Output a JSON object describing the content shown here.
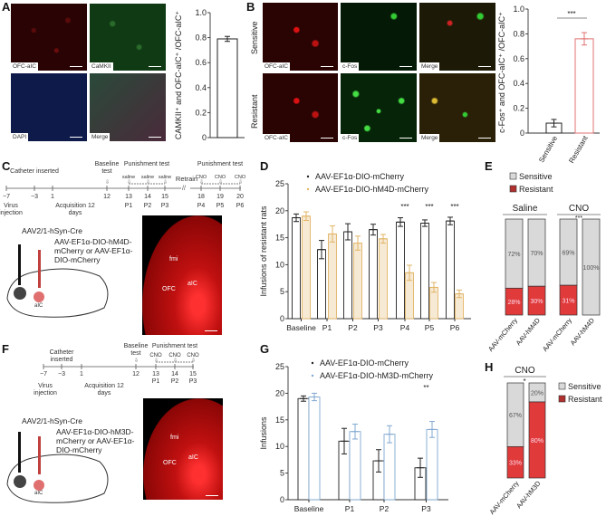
{
  "panels": {
    "A": "A",
    "B": "B",
    "C": "C",
    "D": "D",
    "E": "E",
    "F": "F",
    "G": "G",
    "H": "H"
  },
  "panelA": {
    "tiles": [
      "OFC-aIC",
      "CaMKII",
      "DAPI",
      "Merge"
    ]
  },
  "panelB": {
    "rows": [
      "Sensitive",
      "Resistant"
    ],
    "tiles": [
      "OFC-aIC",
      "c-Fos",
      "Merge"
    ]
  },
  "panelC": {
    "above": {
      "catheter": "Catheter inserted",
      "baseline": "Baseline test",
      "punishment1": "Punishment test",
      "punishment2": "Punishment test",
      "retrain": "Retrain"
    },
    "drugs": [
      "saline",
      "saline",
      "saline",
      "CNO",
      "CNO",
      "CNO"
    ],
    "ticks": [
      "−7",
      "−3",
      "1",
      "12",
      "13",
      "14",
      "15",
      "18",
      "19",
      "20"
    ],
    "sessions": [
      "P1",
      "P2",
      "P3",
      "P4",
      "P5",
      "P6"
    ],
    "virus": "Virus injection",
    "acquisition": "Acquisition 12 days",
    "cre": "AAV2/1-hSyn-Cre",
    "dio": "AAV-EF1α-DIO-hM4D-mCherry or AAV-EF1α-DIO-mCherry",
    "regions": [
      "fmi",
      "OFC",
      "aIC",
      "OFC",
      "aIC"
    ]
  },
  "panelF": {
    "above": {
      "catheter": "Catheter inserted",
      "baseline": "Baseline test",
      "punishment": "Punishment test"
    },
    "drugs": [
      "CNO",
      "CNO",
      "CNO"
    ],
    "ticks": [
      "−7",
      "−3",
      "1",
      "12",
      "13",
      "14",
      "15"
    ],
    "sessions": [
      "P1",
      "P2",
      "P3"
    ],
    "virus": "Virus injection",
    "acquisition": "Acquisition 12 days",
    "cre": "AAV2/1-hSyn-Cre",
    "dio": "AAV-EF1α-DIO-hM3D-mCherry or AAV-EF1α-DIO-mCherry",
    "regions": [
      "fmi",
      "OFC",
      "aIC",
      "OFC",
      "aIC"
    ]
  },
  "chart_data": [
    {
      "id": "A",
      "type": "bar",
      "categories": [
        ""
      ],
      "values": [
        0.79
      ],
      "errors": [
        0.02
      ],
      "ylabel": "CAMKII⁺ and OFC-aIC⁺ /OFC-aIC⁺",
      "ylim": [
        0,
        1
      ],
      "yticks": [
        "0",
        "0.2",
        "0.4",
        "0.6",
        "0.8",
        "1.0"
      ]
    },
    {
      "id": "B",
      "type": "bar",
      "categories": [
        "Sensitive",
        "Resistant"
      ],
      "values": [
        0.08,
        0.76
      ],
      "errors": [
        0.03,
        0.05
      ],
      "ylabel": "c-Fos⁺ and OFC-aIC⁺ /OFC-aIC⁺",
      "ylim": [
        0,
        1
      ],
      "yticks": [
        "0",
        "0.2",
        "0.4",
        "0.6",
        "0.8",
        "1.0"
      ],
      "annotation": "***",
      "colors": [
        "#222222",
        "#e07070"
      ]
    },
    {
      "id": "D",
      "type": "bar",
      "categories": [
        "Baseline",
        "P1",
        "P2",
        "P3",
        "P4",
        "P5",
        "P6"
      ],
      "ylabel": "Infusions of resistant rats",
      "ylim": [
        0,
        25
      ],
      "yticks": [
        "0",
        "5",
        "10",
        "15",
        "20",
        "25"
      ],
      "series": [
        {
          "name": "AAV-EF1α-DIO-mCherry",
          "values": [
            18.7,
            12.8,
            16.1,
            16.5,
            17.9,
            17.7,
            18.1
          ],
          "errors": [
            0.7,
            1.7,
            1.5,
            1.0,
            0.8,
            0.6,
            0.7
          ],
          "color": "#222222"
        },
        {
          "name": "AAV-EF1α-DIO-hM4D-mCherry",
          "values": [
            19.0,
            15.7,
            14.0,
            14.8,
            8.5,
            5.8,
            4.6
          ],
          "errors": [
            0.8,
            1.5,
            1.3,
            0.8,
            1.4,
            0.9,
            0.7
          ],
          "color": "#e2b466"
        }
      ],
      "annotations": [
        "",
        "",
        "",
        "",
        "***",
        "***",
        "***"
      ]
    },
    {
      "id": "E",
      "type": "stacked-bar",
      "legend": [
        "Sensitive",
        "Resistant"
      ],
      "groups": [
        "Saline",
        "CNO"
      ],
      "annotation": "***",
      "categories": [
        "AAV-mCherry",
        "AAV-hM4D",
        "AAV-mCherry",
        "AAV-hM4D"
      ],
      "sensitive": [
        72,
        70,
        69,
        100
      ],
      "resistant": [
        28,
        30,
        31,
        0
      ],
      "labels_sensitive": [
        "72%",
        "70%",
        "69%",
        "100%"
      ],
      "labels_resistant": [
        "28%",
        "30%",
        "31%",
        ""
      ]
    },
    {
      "id": "G",
      "type": "bar",
      "categories": [
        "Baseline",
        "P1",
        "P2",
        "P3"
      ],
      "ylabel": "Infusions",
      "ylim": [
        0,
        25
      ],
      "yticks": [
        "0",
        "5",
        "10",
        "15",
        "20",
        "25"
      ],
      "series": [
        {
          "name": "AAV-EF1α-DIO-mCherry",
          "values": [
            19.0,
            11.0,
            7.3,
            6.0
          ],
          "errors": [
            0.5,
            2.4,
            2.1,
            1.8
          ],
          "color": "#222222"
        },
        {
          "name": "AAV-EF1α-DIO-hM3D-mCherry",
          "values": [
            19.3,
            12.8,
            12.3,
            13.2
          ],
          "errors": [
            0.7,
            1.4,
            1.6,
            1.5
          ],
          "color": "#7fa8d0"
        }
      ],
      "annotations": [
        "",
        "",
        "",
        "**"
      ]
    },
    {
      "id": "H",
      "type": "stacked-bar",
      "legend": [
        "Sensitive",
        "Resistant"
      ],
      "groups": [
        "CNO"
      ],
      "annotation": "*",
      "categories": [
        "AAV-mCherry",
        "AAV-hM3D"
      ],
      "sensitive": [
        67,
        20
      ],
      "resistant": [
        33,
        80
      ],
      "labels_sensitive": [
        "67%",
        "20%"
      ],
      "labels_resistant": [
        "33%",
        "80%"
      ]
    }
  ],
  "colors": {
    "sensitive": "#d9d9d9",
    "resistant": "#e03a3a"
  }
}
